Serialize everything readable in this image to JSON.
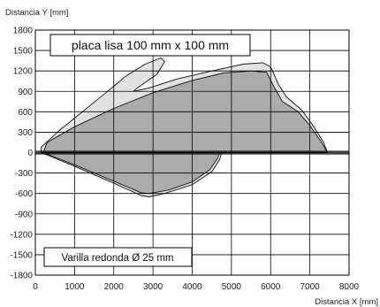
{
  "chart_data": {
    "type": "area",
    "xlabel": "Distancia X [mm]",
    "ylabel": "Distancia Y [mm]",
    "xlim": [
      0,
      8000
    ],
    "ylim": [
      -1800,
      1800
    ],
    "x_ticks": [
      0,
      1000,
      2000,
      3000,
      4000,
      5000,
      6000,
      7000,
      8000
    ],
    "y_ticks": [
      1800,
      1500,
      1200,
      900,
      600,
      300,
      0,
      -300,
      -600,
      -900,
      -1200,
      -1500,
      -1800
    ],
    "grid": true,
    "annotations": [
      "placa lisa 100 mm x 100 mm",
      "Varilla redonda Ø 25 mm"
    ],
    "series": [
      {
        "color": "#e2e2e2",
        "fill_role": "outer-light",
        "points": [
          [
            150,
            80
          ],
          [
            600,
            320
          ],
          [
            1200,
            600
          ],
          [
            1800,
            880
          ],
          [
            2300,
            1120
          ],
          [
            2800,
            1300
          ],
          [
            3200,
            1390
          ],
          [
            3300,
            1340
          ],
          [
            3100,
            1150
          ],
          [
            2600,
            950
          ],
          [
            2500,
            900
          ],
          [
            2900,
            950
          ],
          [
            3600,
            1080
          ],
          [
            4500,
            1200
          ],
          [
            5300,
            1300
          ],
          [
            5800,
            1320
          ],
          [
            6000,
            1260
          ],
          [
            6200,
            1000
          ],
          [
            6400,
            820
          ],
          [
            6800,
            620
          ],
          [
            7100,
            380
          ],
          [
            7350,
            150
          ],
          [
            7450,
            0
          ],
          [
            150,
            0
          ]
        ]
      },
      {
        "color": "#ababab",
        "fill_role": "inner-dark",
        "points": [
          [
            200,
            0
          ],
          [
            300,
            150
          ],
          [
            1000,
            380
          ],
          [
            2000,
            650
          ],
          [
            3000,
            880
          ],
          [
            4000,
            1060
          ],
          [
            4800,
            1170
          ],
          [
            5500,
            1200
          ],
          [
            5900,
            1180
          ],
          [
            6100,
            950
          ],
          [
            6300,
            750
          ],
          [
            6700,
            600
          ],
          [
            7000,
            400
          ],
          [
            7300,
            150
          ],
          [
            7450,
            0
          ]
        ]
      },
      {
        "color": "#e2e2e2",
        "fill_role": "outer-light",
        "points": [
          [
            150,
            0
          ],
          [
            1000,
            -200
          ],
          [
            2000,
            -450
          ],
          [
            2700,
            -630
          ],
          [
            2900,
            -650
          ],
          [
            3300,
            -600
          ],
          [
            4000,
            -470
          ],
          [
            4500,
            -280
          ],
          [
            4700,
            -100
          ],
          [
            4750,
            0
          ]
        ]
      },
      {
        "color": "#ababab",
        "fill_role": "inner-dark",
        "points": [
          [
            200,
            0
          ],
          [
            1000,
            -180
          ],
          [
            2000,
            -420
          ],
          [
            2700,
            -590
          ],
          [
            2900,
            -600
          ],
          [
            3400,
            -550
          ],
          [
            4000,
            -430
          ],
          [
            4450,
            -250
          ],
          [
            4650,
            -80
          ],
          [
            4700,
            0
          ]
        ]
      }
    ]
  }
}
